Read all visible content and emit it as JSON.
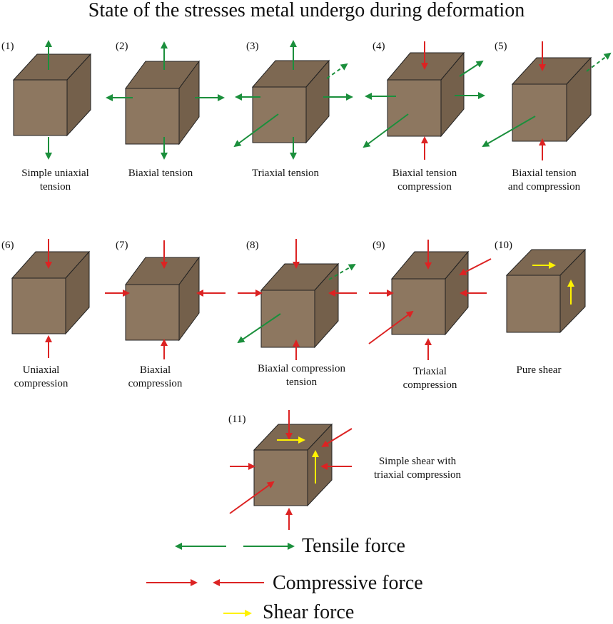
{
  "title": "State of the stresses metal undergo during deformation",
  "colors": {
    "cube_front": "#8d7760",
    "cube_top": "#7d6852",
    "cube_side": "#74604b",
    "edge": "#222222",
    "tensile": "#1b8f3c",
    "compressive": "#dc2323",
    "shear": "#fff200"
  },
  "diagrams": [
    {
      "number": "(1)",
      "caption": [
        "Simple uniaxial",
        "tension"
      ]
    },
    {
      "number": "(2)",
      "caption": [
        "Biaxial tension"
      ]
    },
    {
      "number": "(3)",
      "caption": [
        "Triaxial tension"
      ]
    },
    {
      "number": "(4)",
      "caption": [
        "Biaxial tension",
        "compression"
      ]
    },
    {
      "number": "(5)",
      "caption": [
        "Biaxial tension",
        "and compression"
      ]
    },
    {
      "number": "(6)",
      "caption": [
        "Uniaxial",
        "compression"
      ]
    },
    {
      "number": "(7)",
      "caption": [
        "Biaxial",
        "compression"
      ]
    },
    {
      "number": "(8)",
      "caption": [
        "Biaxial compression",
        "tension"
      ]
    },
    {
      "number": "(9)",
      "caption": [
        "Triaxial",
        "compression"
      ]
    },
    {
      "number": "(10)",
      "caption": [
        "Pure shear"
      ]
    },
    {
      "number": "(11)",
      "caption": [
        "Simple shear with",
        "triaxial compression"
      ]
    }
  ],
  "legend": {
    "tensile": "Tensile force",
    "compressive": "Compressive force",
    "shear": "Shear force"
  }
}
